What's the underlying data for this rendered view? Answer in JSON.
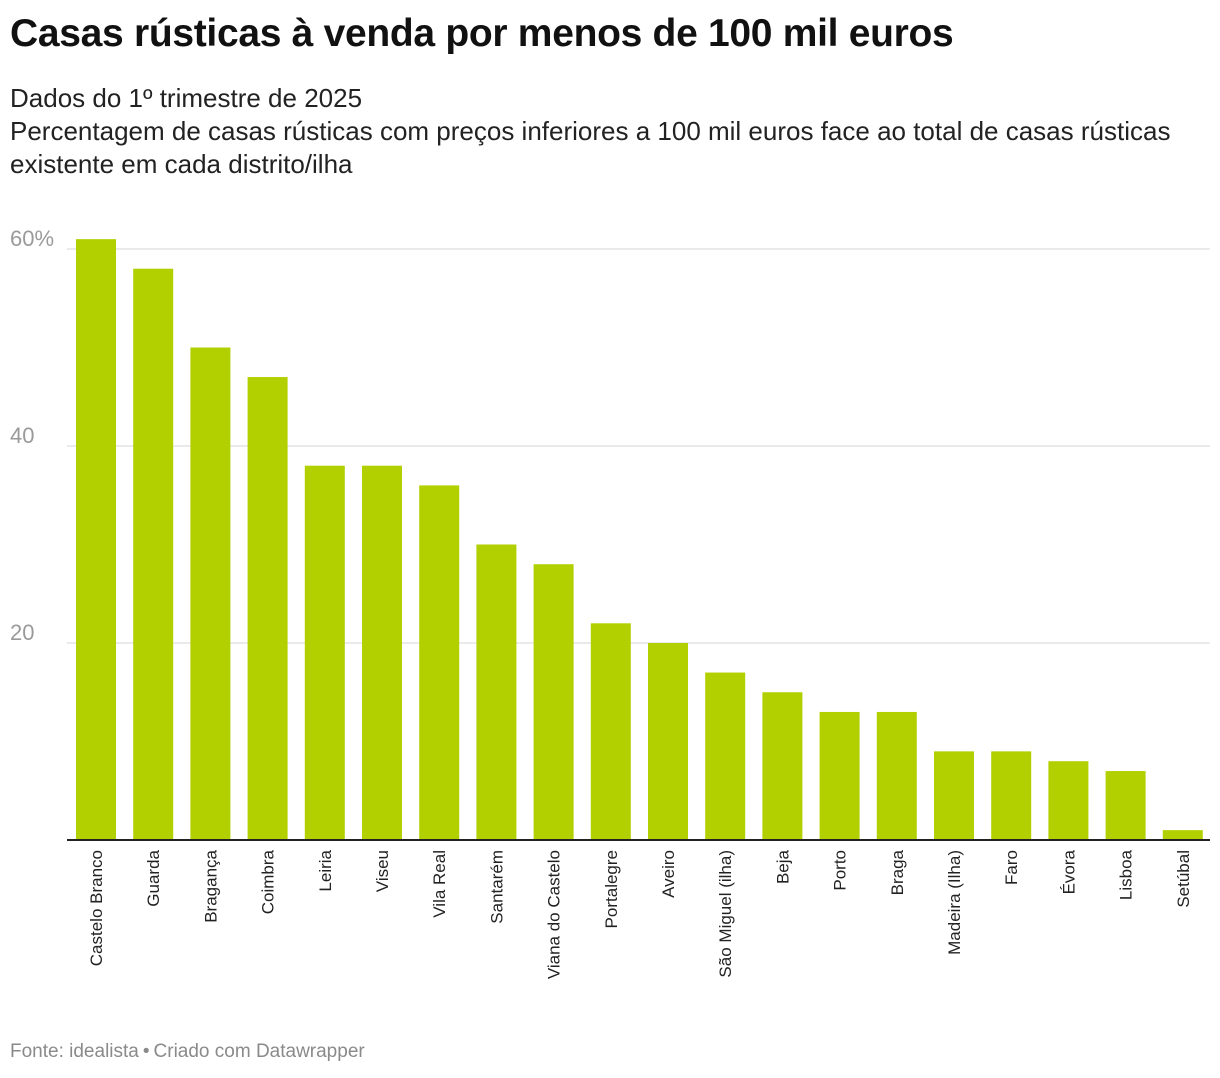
{
  "title": "Casas rústicas à venda por menos de 100 mil euros",
  "subtitle_lines": [
    "Dados do 1º trimestre de 2025",
    "Percentagem de casas rústicas com preços inferiores a 100 mil euros face ao total de casas rústicas existente em cada distrito/ilha"
  ],
  "footer": {
    "source": "Fonte: idealista",
    "separator": "•",
    "credit": "Criado com Datawrapper"
  },
  "chart_data": {
    "type": "bar",
    "categories": [
      "Castelo Branco",
      "Guarda",
      "Bragança",
      "Coimbra",
      "Leiria",
      "Viseu",
      "Vila Real",
      "Santarém",
      "Viana do Castelo",
      "Portalegre",
      "Aveiro",
      "São Miguel (ilha)",
      "Beja",
      "Porto",
      "Braga",
      "Madeira (Ilha)",
      "Faro",
      "Évora",
      "Lisboa",
      "Setúbal"
    ],
    "values": [
      61,
      58,
      50,
      47,
      38,
      38,
      36,
      30,
      28,
      22,
      20,
      17,
      15,
      13,
      13,
      9,
      9,
      8,
      7,
      1
    ],
    "ylim": [
      0,
      60
    ],
    "yticks": [
      20,
      40,
      60
    ],
    "ytick_labels": [
      "20",
      "40",
      "60%"
    ],
    "grid": true,
    "bar_color": "#b2d000",
    "grid_color": "#e3e3e3",
    "axis_color": "#222222",
    "tick_label_color": "#9a9a9a"
  }
}
